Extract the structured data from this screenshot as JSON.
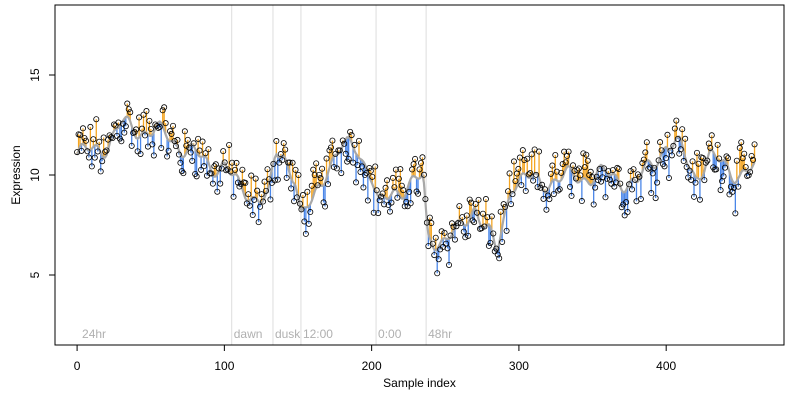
{
  "chart_data": {
    "type": "scatter",
    "title": "",
    "xlabel": "Sample index",
    "ylabel": "Expression",
    "xlim": [
      -15,
      480
    ],
    "ylim": [
      1.5,
      18.5
    ],
    "xticks": [
      0,
      100,
      200,
      300,
      400
    ],
    "yticks": [
      5,
      10,
      15
    ],
    "grid": false,
    "legend": "none",
    "colors": {
      "above_trend": "#f5a623",
      "below_trend": "#4a86e8",
      "trend": "#a8a8a8",
      "phase_line": "#dddddd",
      "points": "#000000"
    },
    "phases": [
      {
        "x": 2,
        "label": "24hr"
      },
      {
        "x": 105,
        "label": "dawn"
      },
      {
        "x": 133,
        "label": "dusk"
      },
      {
        "x": 152,
        "label": "12:00"
      },
      {
        "x": 203,
        "label": "0:00"
      },
      {
        "x": 237,
        "label": "48hr"
      }
    ],
    "anchors": [
      [
        0,
        11.0
      ],
      [
        10,
        11.2
      ],
      [
        20,
        11.5
      ],
      [
        30,
        12.5
      ],
      [
        40,
        12.3
      ],
      [
        50,
        12.2
      ],
      [
        60,
        12.0
      ],
      [
        70,
        11.5
      ],
      [
        80,
        11.0
      ],
      [
        90,
        10.5
      ],
      [
        100,
        10.5
      ],
      [
        110,
        9.3
      ],
      [
        120,
        9.0
      ],
      [
        130,
        8.8
      ],
      [
        135,
        11.0
      ],
      [
        140,
        11.0
      ],
      [
        148,
        10.0
      ],
      [
        152,
        7.8
      ],
      [
        160,
        8.6
      ],
      [
        170,
        10.5
      ],
      [
        180,
        11.3
      ],
      [
        190,
        11.4
      ],
      [
        200,
        10.0
      ],
      [
        205,
        8.3
      ],
      [
        215,
        9.2
      ],
      [
        225,
        9.5
      ],
      [
        235,
        9.8
      ],
      [
        238,
        6.8
      ],
      [
        250,
        6.8
      ],
      [
        260,
        7.2
      ],
      [
        270,
        8.5
      ],
      [
        280,
        7.0
      ],
      [
        285,
        6.0
      ],
      [
        295,
        9.7
      ],
      [
        305,
        9.8
      ],
      [
        315,
        9.6
      ],
      [
        325,
        9.8
      ],
      [
        340,
        9.9
      ],
      [
        360,
        10.0
      ],
      [
        380,
        9.5
      ],
      [
        390,
        10.6
      ],
      [
        400,
        11.5
      ],
      [
        410,
        11.3
      ],
      [
        420,
        10.0
      ],
      [
        430,
        10.8
      ],
      [
        440,
        10.5
      ],
      [
        450,
        10.0
      ],
      [
        460,
        10.2
      ]
    ],
    "n_points": 460,
    "x_range": [
      0,
      460
    ]
  }
}
